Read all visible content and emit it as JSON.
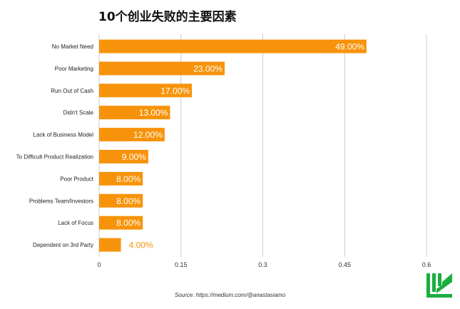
{
  "title": "10个创业失败的主要因素",
  "source": "Source: https://medium.com/@anastasiamo",
  "colors": {
    "bar": "#F7930A",
    "inside_label": "#ffffff",
    "outside_label": "#F7930A",
    "grid": "#cccccc",
    "logo": "#1AAE3F"
  },
  "logo_icon": "green-brand-logo",
  "chart_data": {
    "type": "bar",
    "orientation": "horizontal",
    "categories": [
      "No Market Need",
      "Poor Marketing",
      "Run Out of Cash",
      "Didn't Scale",
      "Lack of Business Model",
      "To Difficult Product Realization",
      "Poor Product",
      "Problems Team/Investors",
      "Lack of Focus",
      "Dependent on 3rd Party"
    ],
    "values": [
      0.49,
      0.23,
      0.17,
      0.13,
      0.12,
      0.09,
      0.08,
      0.08,
      0.08,
      0.04
    ],
    "data_labels": [
      "49.00%",
      "23.00%",
      "17.00%",
      "13.00%",
      "12.00%",
      "9.00%",
      "8.00%",
      "8.00%",
      "8.00%",
      "4.00%"
    ],
    "x_ticks": [
      "0",
      "0.15",
      "0.3",
      "0.45",
      "0.6"
    ],
    "xlim": [
      0,
      0.6
    ],
    "grid": "vertical",
    "legend": "none",
    "xlabel": "",
    "ylabel": ""
  }
}
